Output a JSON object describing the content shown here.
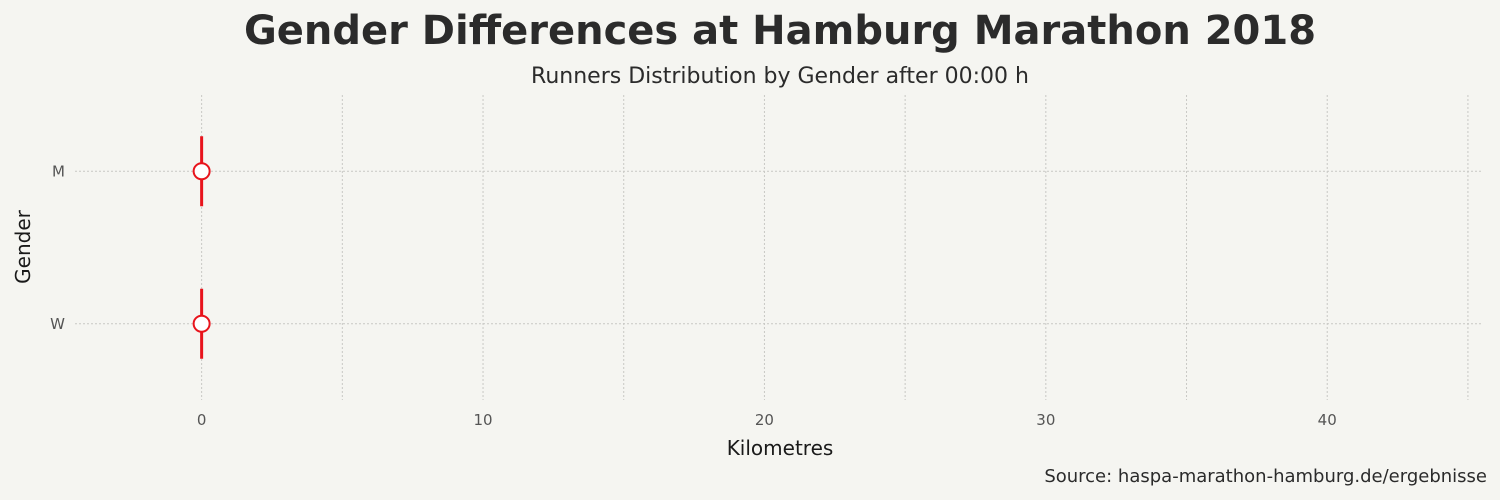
{
  "chart_data": {
    "type": "scatter",
    "title": "Gender Differences at Hamburg Marathon 2018",
    "subtitle": "Runners Distribution by Gender after 00:00 h",
    "xlabel": "Kilometres",
    "ylabel": "Gender",
    "caption": "Source: haspa-marathon-hamburg.de/ergebnisse",
    "xlim": [
      -4.5,
      45.5
    ],
    "x_ticks": [
      0,
      10,
      20,
      30,
      40
    ],
    "x_minor_grid": [
      5,
      15,
      25,
      35,
      45
    ],
    "categories": [
      "M",
      "W"
    ],
    "grid": true,
    "legend": "none",
    "series": [
      {
        "points": [
          {
            "gender": "M",
            "x": 0,
            "low": 0,
            "high": 0
          },
          {
            "gender": "W",
            "x": 0,
            "low": 0,
            "high": 0
          }
        ]
      }
    ],
    "colors": {
      "marker": "#e8141c",
      "marker_fill": "#ffffff",
      "background": "#f5f5f1"
    }
  }
}
